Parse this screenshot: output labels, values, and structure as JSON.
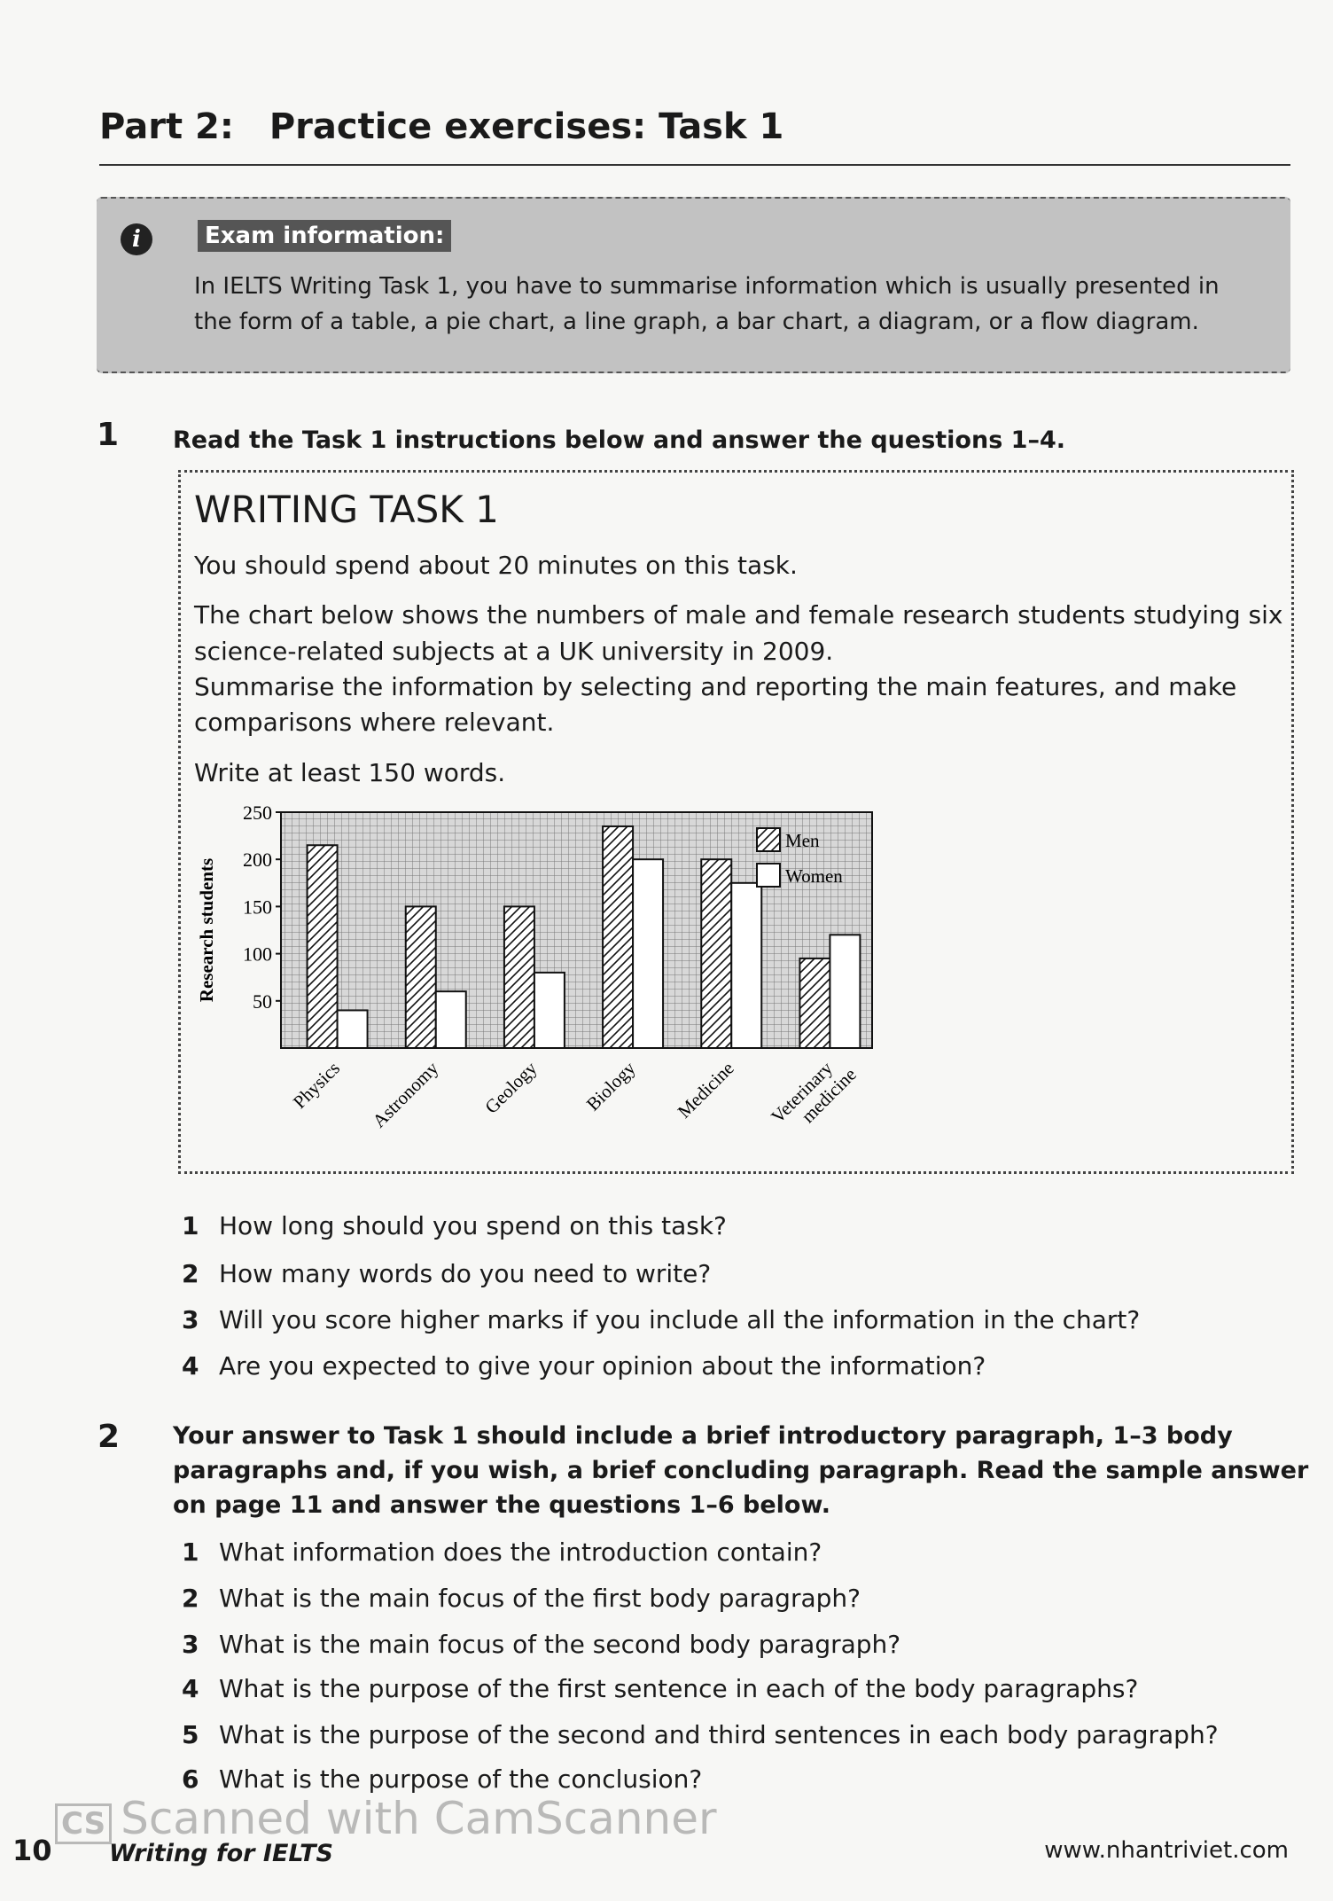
{
  "header": {
    "part": "Part 2:",
    "title": "Practice exercises: Task 1"
  },
  "exam_info": {
    "icon": "info-icon",
    "icon_glyph": "i",
    "label": "Exam information:",
    "lines": [
      "In IELTS Writing Task 1, you have to summarise information which is usually presented in",
      "the form of a table, a pie chart, a line graph, a bar chart, a diagram, or a flow diagram."
    ]
  },
  "exercise1": {
    "number": "1",
    "instruction": "Read the Task 1 instructions below and answer the questions 1–4.",
    "task": {
      "heading": "WRITING TASK 1",
      "lines": [
        "You should spend about 20 minutes on this task.",
        "The chart below shows the numbers of male and female research students studying six",
        "science-related subjects at a UK university in 2009.",
        "Summarise the information by selecting and reporting the main features, and make",
        "comparisons where relevant.",
        "Write at least 150 words."
      ]
    },
    "questions": [
      {
        "n": "1",
        "text": "How long should you spend on this task?"
      },
      {
        "n": "2",
        "text": "How many words do you need to write?"
      },
      {
        "n": "3",
        "text": "Will you score higher marks if you include all the information in the chart?"
      },
      {
        "n": "4",
        "text": "Are you expected to give your opinion about the information?"
      }
    ]
  },
  "exercise2": {
    "number": "2",
    "instruction": [
      "Your answer to Task 1 should include a brief introductory paragraph, 1–3 body",
      "paragraphs and, if you wish, a brief concluding paragraph. Read the sample answer",
      "on page 11 and answer the questions 1–6 below."
    ],
    "questions": [
      {
        "n": "1",
        "text": "What information does the introduction contain?"
      },
      {
        "n": "2",
        "text": "What is the main focus of the first body paragraph?"
      },
      {
        "n": "3",
        "text": "What is the main focus of the second body paragraph?"
      },
      {
        "n": "4",
        "text": "What is the purpose of the first sentence in each of the body paragraphs?"
      },
      {
        "n": "5",
        "text": "What is the purpose of the second and third sentences in each body paragraph?"
      },
      {
        "n": "6",
        "text": "What is the purpose of the conclusion?"
      }
    ]
  },
  "chart_data": {
    "type": "bar",
    "title": "",
    "xlabel": "",
    "ylabel": "Research students",
    "ylim": [
      0,
      250
    ],
    "yticks": [
      "50",
      "100",
      "150",
      "200",
      "250"
    ],
    "grid": true,
    "legend": "top-right",
    "categories": [
      "Physics",
      "Astronomy",
      "Geology",
      "Biology",
      "Medicine",
      "Veterinary medicine"
    ],
    "series": [
      {
        "name": "Men",
        "values": [
          215,
          150,
          150,
          235,
          200,
          95
        ]
      },
      {
        "name": "Women",
        "values": [
          40,
          60,
          80,
          200,
          175,
          120
        ]
      }
    ]
  },
  "footer": {
    "page": "10",
    "book": "Writing for IELTS",
    "website": "www.nhantriviet.com"
  },
  "watermark": {
    "logo": "CS",
    "text": "Scanned with CamScanner"
  }
}
